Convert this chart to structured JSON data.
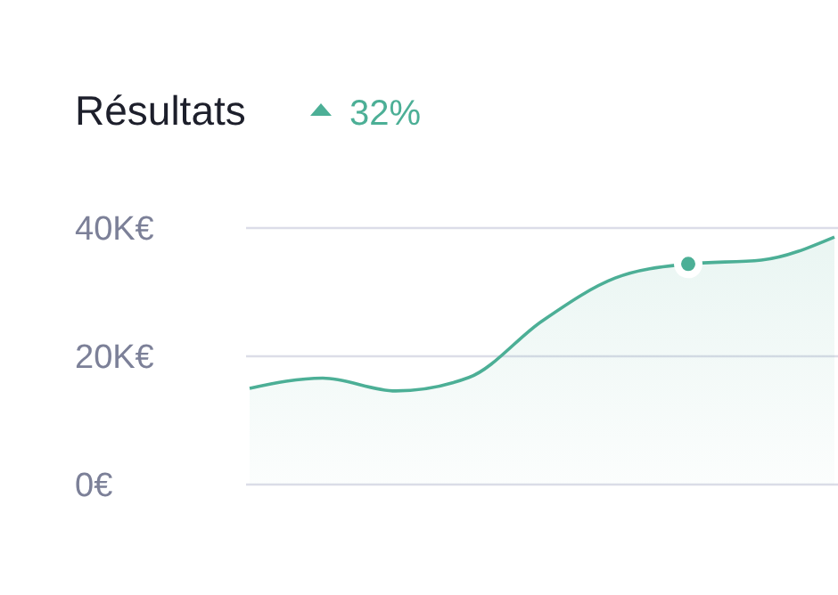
{
  "chart_data": {
    "type": "area",
    "title": "Résultats",
    "subtitle": "32%",
    "categories": [
      null,
      null,
      null,
      null,
      null,
      null,
      null,
      null,
      null
    ],
    "series": [
      {
        "color": "#4caf96",
        "values": [
          15,
          16.6,
          14.6,
          16.7,
          25.5,
          32.2,
          34.4,
          35,
          38.6
        ]
      },
      {
        "type": "scatter",
        "color": "#4caf96",
        "marker": "circle",
        "values": [
          null,
          null,
          null,
          null,
          null,
          null,
          34.4,
          null,
          null
        ]
      }
    ],
    "ylim": [
      0,
      40
    ],
    "yticks": [
      {
        "value": 0,
        "label": "0€"
      },
      {
        "value": 20,
        "label": "20K€"
      },
      {
        "value": 40,
        "label": "40K€"
      }
    ],
    "grid": "y"
  }
}
